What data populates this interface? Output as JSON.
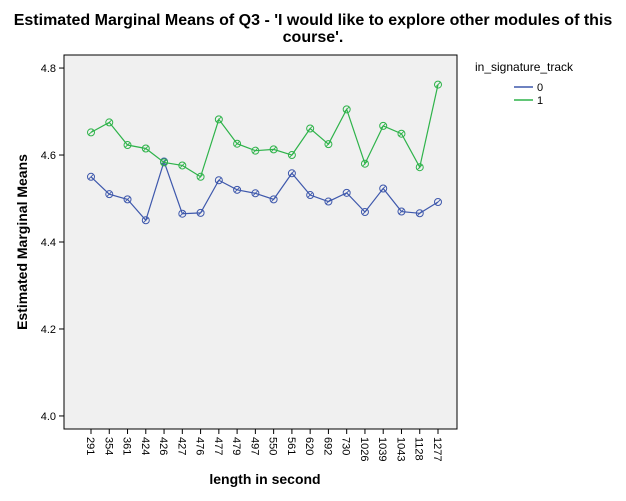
{
  "chart_data": {
    "type": "line",
    "title_line1": "Estimated Marginal Means of Q3 - 'I would like to explore other modules of this",
    "title_line2": "course'.",
    "xlabel": "length in second",
    "ylabel": "Estimated Marginal Means",
    "categories": [
      "291",
      "354",
      "361",
      "424",
      "426",
      "427",
      "476",
      "477",
      "479",
      "497",
      "550",
      "561",
      "620",
      "692",
      "730",
      "1026",
      "1039",
      "1043",
      "1128",
      "1277"
    ],
    "ylim": [
      3.97,
      4.83
    ],
    "yticks": [
      "4.0",
      "4.2",
      "4.4",
      "4.6",
      "4.8"
    ],
    "ytick_values": [
      4.0,
      4.2,
      4.4,
      4.6,
      4.8
    ],
    "legend_title": "in_signature_track",
    "legend_position": "top-right",
    "plot_background": "#f0f0f0",
    "series": [
      {
        "name": "0",
        "color": "#3e58ac",
        "values": [
          4.55,
          4.51,
          4.498,
          4.45,
          4.585,
          4.465,
          4.467,
          4.542,
          4.52,
          4.512,
          4.498,
          4.558,
          4.508,
          4.493,
          4.513,
          4.469,
          4.523,
          4.47,
          4.466,
          4.492
        ]
      },
      {
        "name": "1",
        "color": "#2eb34a",
        "values": [
          4.652,
          4.675,
          4.623,
          4.615,
          4.583,
          4.576,
          4.55,
          4.682,
          4.626,
          4.61,
          4.613,
          4.6,
          4.661,
          4.625,
          4.705,
          4.58,
          4.667,
          4.649,
          4.572,
          4.762
        ]
      }
    ]
  }
}
